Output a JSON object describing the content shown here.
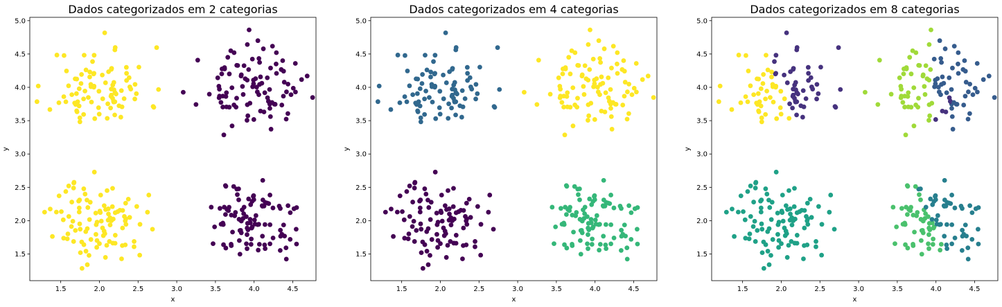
{
  "chart_data": [
    {
      "type": "scatter",
      "title": "Dados categorizados em 2 categorias",
      "xlabel": "x",
      "ylabel": "y",
      "xlim": [
        1.1,
        4.8
      ],
      "ylim": [
        1.1,
        5.05
      ],
      "xticks": [
        "1.5",
        "2.0",
        "2.5",
        "3.0",
        "3.5",
        "4.0",
        "4.5"
      ],
      "yticks": [
        "1.5",
        "2.0",
        "2.5",
        "3.0",
        "3.5",
        "4.0",
        "4.5",
        "5.0"
      ],
      "grid": false,
      "palette": [
        "#440154",
        "#fde725"
      ],
      "clusters": [
        {
          "center": [
            2.0,
            4.0
          ],
          "spread": [
            0.32,
            0.3
          ],
          "n": 90,
          "seed": 11,
          "category": 1
        },
        {
          "center": [
            3.95,
            4.0
          ],
          "spread": [
            0.32,
            0.28
          ],
          "n": 100,
          "seed": 23,
          "category": 0
        },
        {
          "center": [
            2.0,
            2.0
          ],
          "spread": [
            0.3,
            0.3
          ],
          "n": 100,
          "seed": 37,
          "category": 1
        },
        {
          "center": [
            3.95,
            2.0
          ],
          "spread": [
            0.3,
            0.28
          ],
          "n": 100,
          "seed": 51,
          "category": 0
        }
      ]
    },
    {
      "type": "scatter",
      "title": "Dados categorizados em 4 categorias",
      "xlabel": "x",
      "ylabel": "y",
      "xlim": [
        1.1,
        4.8
      ],
      "ylim": [
        1.1,
        5.05
      ],
      "xticks": [
        "1.5",
        "2.0",
        "2.5",
        "3.0",
        "3.5",
        "4.0",
        "4.5"
      ],
      "yticks": [
        "1.5",
        "2.0",
        "2.5",
        "3.0",
        "3.5",
        "4.0",
        "4.5",
        "5.0"
      ],
      "grid": false,
      "palette": [
        "#440154",
        "#31688e",
        "#35b779",
        "#fde725"
      ],
      "clusters": [
        {
          "center": [
            2.0,
            4.0
          ],
          "spread": [
            0.32,
            0.3
          ],
          "n": 90,
          "seed": 11,
          "category": 1
        },
        {
          "center": [
            3.95,
            4.0
          ],
          "spread": [
            0.32,
            0.28
          ],
          "n": 100,
          "seed": 23,
          "category": 3
        },
        {
          "center": [
            2.0,
            2.0
          ],
          "spread": [
            0.3,
            0.3
          ],
          "n": 100,
          "seed": 37,
          "category": 0
        },
        {
          "center": [
            3.95,
            2.0
          ],
          "spread": [
            0.3,
            0.28
          ],
          "n": 100,
          "seed": 51,
          "category": 2
        }
      ]
    },
    {
      "type": "scatter",
      "title": "Dados categorizados em 8 categorias",
      "xlabel": "x",
      "ylabel": "y",
      "xlim": [
        1.1,
        4.8
      ],
      "ylim": [
        1.1,
        5.05
      ],
      "xticks": [
        "1.5",
        "2.0",
        "2.5",
        "3.0",
        "3.5",
        "4.0",
        "4.5"
      ],
      "yticks": [
        "1.5",
        "2.0",
        "2.5",
        "3.0",
        "3.5",
        "4.0",
        "4.5",
        "5.0"
      ],
      "grid": false,
      "palette": [
        "#440154",
        "#46327e",
        "#365c8d",
        "#277f8e",
        "#1fa187",
        "#4ac16d",
        "#a0da39",
        "#fde725"
      ],
      "clusters": [
        {
          "center": [
            2.0,
            4.0
          ],
          "spread": [
            0.32,
            0.3
          ],
          "n": 90,
          "seed": 11,
          "split": "diag",
          "category_a": 7,
          "category_b": 1
        },
        {
          "center": [
            3.95,
            4.0
          ],
          "spread": [
            0.32,
            0.28
          ],
          "n": 100,
          "seed": 23,
          "split": "x",
          "category_a": 6,
          "category_b": 2,
          "extra_category": 1
        },
        {
          "center": [
            2.0,
            2.0
          ],
          "spread": [
            0.3,
            0.3
          ],
          "n": 100,
          "seed": 37,
          "category": 4
        },
        {
          "center": [
            3.95,
            2.0
          ],
          "spread": [
            0.3,
            0.28
          ],
          "n": 100,
          "seed": 51,
          "split": "diag",
          "category_a": 5,
          "category_b": 3
        }
      ]
    }
  ]
}
